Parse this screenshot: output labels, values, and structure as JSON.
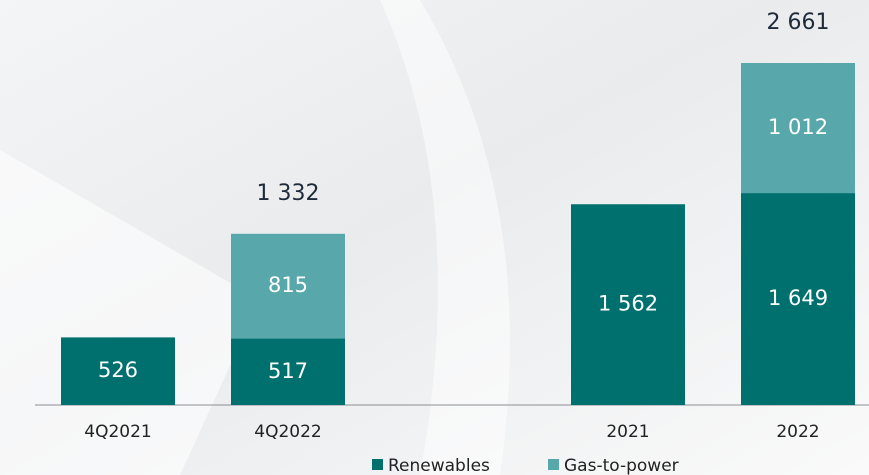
{
  "chart_data": {
    "type": "stacked_bar",
    "categories": [
      "4Q2021",
      "4Q2022",
      null,
      "2021",
      "2022"
    ],
    "series": [
      {
        "name": "Renewables",
        "color": "#00706f",
        "values": [
          526,
          517,
          null,
          1562,
          1649
        ],
        "value_labels": [
          "526",
          "517",
          null,
          "1 562",
          "1 649"
        ]
      },
      {
        "name": "Gas-to-power",
        "color": "#58a7aa",
        "values": [
          null,
          815,
          null,
          null,
          1012
        ],
        "value_labels": [
          null,
          "815",
          null,
          null,
          "1 012"
        ]
      }
    ],
    "totals": [
      null,
      1332,
      null,
      null,
      2661
    ],
    "total_labels": [
      null,
      "1 332",
      null,
      null,
      "2 661"
    ],
    "legend": "bottom"
  }
}
